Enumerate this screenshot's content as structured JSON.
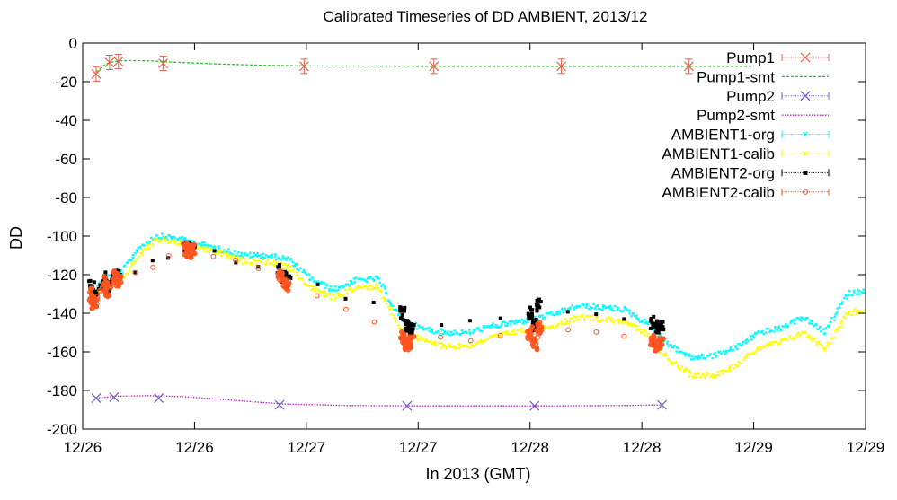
{
  "chart_data": {
    "type": "line",
    "title": "Calibrated Timeseries of DD AMBIENT, 2013/12",
    "xlabel": "In 2013 (GMT)",
    "ylabel": "DD",
    "ylim": [
      -200,
      0
    ],
    "yticks": [
      0,
      -20,
      -40,
      -60,
      -80,
      -100,
      -120,
      -140,
      -160,
      -180,
      -200
    ],
    "xlim": [
      0,
      3.5
    ],
    "x_unit": "days since 12/26 00:00",
    "xticks": [
      {
        "x": 0.0,
        "label": "12/26"
      },
      {
        "x": 0.5,
        "label": "12/26"
      },
      {
        "x": 1.0,
        "label": "12/27"
      },
      {
        "x": 1.5,
        "label": "12/27"
      },
      {
        "x": 2.0,
        "label": "12/28"
      },
      {
        "x": 2.5,
        "label": "12/28"
      },
      {
        "x": 3.0,
        "label": "12/29"
      },
      {
        "x": 3.5,
        "label": "12/29"
      }
    ],
    "legend_position": "top-right",
    "series": [
      {
        "name": "Pump1",
        "color": "#e8604c",
        "style": "markers-x-errorbars",
        "x": [
          0.06,
          0.12,
          0.16,
          0.36,
          0.99,
          1.57,
          2.14,
          2.71
        ],
        "y": [
          -16,
          -10,
          -9.5,
          -10.5,
          -12,
          -12,
          -12,
          -12
        ]
      },
      {
        "name": "Pump1-smt",
        "color": "#22cc22",
        "style": "dashed-line",
        "x": [
          0.06,
          0.1,
          0.14,
          0.2,
          0.3,
          0.4,
          0.6,
          0.8,
          1.0,
          1.5,
          2.0,
          2.5,
          3.0
        ],
        "y": [
          -15,
          -11,
          -9.5,
          -9,
          -9.2,
          -9.8,
          -10.8,
          -11.5,
          -11.8,
          -12,
          -12,
          -12,
          -12
        ]
      },
      {
        "name": "Pump2",
        "color": "#6a5acd",
        "style": "markers-x",
        "x": [
          0.06,
          0.14,
          0.34,
          0.88,
          1.45,
          2.02,
          2.59
        ],
        "y": [
          -184,
          -183.5,
          -184,
          -187.5,
          -188,
          -188,
          -187.5
        ]
      },
      {
        "name": "Pump2-smt",
        "color": "#cc22cc",
        "style": "dotted-line",
        "x": [
          0.06,
          0.15,
          0.3,
          0.45,
          0.6,
          0.9,
          1.2,
          1.5,
          1.8,
          2.1,
          2.4,
          2.59
        ],
        "y": [
          -184,
          -183,
          -182.7,
          -183.2,
          -184.5,
          -187,
          -187.8,
          -188,
          -188,
          -188,
          -187.8,
          -187.5
        ]
      },
      {
        "name": "AMBIENT1-org",
        "color": "#00ffff",
        "style": "dense-points",
        "x": [
          0.04,
          0.08,
          0.13,
          0.18,
          0.25,
          0.33,
          0.42,
          0.52,
          0.62,
          0.72,
          0.82,
          0.92,
          1.02,
          1.12,
          1.22,
          1.32,
          1.42,
          1.52,
          1.62,
          1.72,
          1.82,
          1.92,
          2.02,
          2.12,
          2.22,
          2.32,
          2.42,
          2.52,
          2.62,
          2.72,
          2.82,
          2.92,
          3.02,
          3.12,
          3.22,
          3.32,
          3.42,
          3.5
        ],
        "y": [
          -130,
          -124,
          -120,
          -118,
          -106,
          -100,
          -101,
          -104,
          -107,
          -110,
          -110,
          -112,
          -122,
          -128,
          -123,
          -122,
          -143,
          -148,
          -150,
          -150,
          -147,
          -145,
          -143,
          -140,
          -136,
          -137,
          -138,
          -145,
          -156,
          -163,
          -162,
          -158,
          -150,
          -148,
          -142,
          -150,
          -130,
          -128
        ]
      },
      {
        "name": "AMBIENT1-calib",
        "color": "#ffff00",
        "style": "dense-points",
        "x": [
          0.04,
          0.08,
          0.13,
          0.18,
          0.25,
          0.33,
          0.42,
          0.52,
          0.62,
          0.72,
          0.82,
          0.92,
          1.02,
          1.12,
          1.22,
          1.32,
          1.42,
          1.52,
          1.62,
          1.72,
          1.82,
          1.92,
          2.02,
          2.12,
          2.22,
          2.32,
          2.42,
          2.52,
          2.62,
          2.72,
          2.82,
          2.92,
          3.02,
          3.12,
          3.22,
          3.32,
          3.42,
          3.5
        ],
        "y": [
          -134,
          -128,
          -124,
          -122,
          -110,
          -102,
          -103,
          -106,
          -109,
          -113,
          -113,
          -116,
          -127,
          -132,
          -127,
          -126,
          -148,
          -154,
          -157,
          -157,
          -153,
          -150,
          -148,
          -146,
          -142,
          -143,
          -144,
          -151,
          -164,
          -172,
          -172,
          -167,
          -158,
          -155,
          -150,
          -158,
          -140,
          -138
        ]
      },
      {
        "name": "AMBIENT2-org",
        "color": "#000000",
        "style": "square-points",
        "x": [
          0.04,
          0.05,
          0.1,
          0.11,
          0.15,
          0.16,
          0.46,
          0.475,
          0.49,
          0.88,
          0.9,
          0.92,
          1.43,
          1.45,
          1.47,
          2.0,
          2.02,
          2.04,
          2.55,
          2.57,
          2.59
        ],
        "y": [
          -126,
          -132,
          -122,
          -126,
          -119,
          -121,
          -106,
          -107,
          -106,
          -118,
          -121,
          -122,
          -140,
          -146,
          -148,
          -140,
          -146,
          -135,
          -145,
          -147,
          -146
        ]
      },
      {
        "name": "AMBIENT2-calib",
        "color": "#ff5520",
        "style": "circle-points",
        "x": [
          0.04,
          0.05,
          0.1,
          0.11,
          0.15,
          0.16,
          0.46,
          0.475,
          0.49,
          0.88,
          0.9,
          0.92,
          1.43,
          1.45,
          1.47,
          2.0,
          2.02,
          2.04,
          2.55,
          2.57,
          2.59
        ],
        "y": [
          -130,
          -136,
          -124,
          -128,
          -121,
          -123,
          -107,
          -108,
          -107,
          -121,
          -124,
          -125,
          -152,
          -156,
          -155,
          -150,
          -156,
          -148,
          -154,
          -157,
          -155
        ]
      }
    ]
  }
}
